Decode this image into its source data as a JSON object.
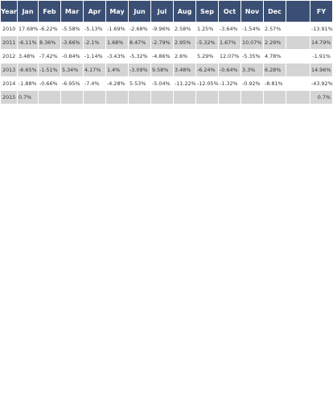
{
  "table": {
    "headers": [
      "Year",
      "Jan",
      "Feb",
      "Mar",
      "Apr",
      "May",
      "Jun",
      "Jul",
      "Aug",
      "Sep",
      "Oct",
      "Nov",
      "Dec",
      "",
      "FY"
    ],
    "rows": [
      {
        "year": "2010",
        "months": [
          "17.68%",
          "-6.22%",
          "-5.58%",
          "-5.13%",
          "-1.69%",
          "-2.68%",
          "-9.96%",
          "2.58%",
          "1.25%",
          "-3.64%",
          "-1.54%",
          "2.57%"
        ],
        "blank": "",
        "fy": "-13.91%"
      },
      {
        "year": "2011",
        "months": [
          "-6.11%",
          "8.36%",
          "-3.66%",
          "-2.1%",
          "1.68%",
          "8.47%",
          "-2.79%",
          "2.95%",
          "-5.32%",
          "1.67%",
          "10.07%",
          "2.29%"
        ],
        "blank": "",
        "fy": "14.79%"
      },
      {
        "year": "2012",
        "months": [
          "3.48%",
          "-7.42%",
          "-0.84%",
          "-1.14%",
          "-3.43%",
          "-5.32%",
          "-4.86%",
          "2.6%",
          "5.29%",
          "12.07%",
          "-5.35%",
          "4.78%"
        ],
        "blank": "",
        "fy": "-1.91%"
      },
      {
        "year": "2013",
        "months": [
          "-6.65%",
          "-1.51%",
          "5.34%",
          "4.17%",
          "1.4%",
          "-3.09%",
          "9.58%",
          "3.48%",
          "-6.24%",
          "-0.64%",
          "3.3%",
          "6.28%"
        ],
        "blank": "",
        "fy": "14.96%"
      },
      {
        "year": "2014",
        "months": [
          "-1.88%",
          "-0.66%",
          "-6.95%",
          "-7.4%",
          "-4.28%",
          "5.53%",
          "-5.04%",
          "-11.22%",
          "-12.05%",
          "-1.32%",
          "-0.92%",
          "-8.81%"
        ],
        "blank": "",
        "fy": "-43.92%"
      },
      {
        "year": "2015",
        "months": [
          "0.7%",
          "",
          "",
          "",
          "",
          "",
          "",
          "",
          "",
          "",
          "",
          ""
        ],
        "blank": "",
        "fy": "0.7%"
      }
    ]
  },
  "colors": {
    "header_bg": "#3a4f73",
    "header_text": "#ffffff",
    "row_alt_bg": "#d4d4d4",
    "row_bg": "#ffffff",
    "cell_text": "#333333"
  }
}
